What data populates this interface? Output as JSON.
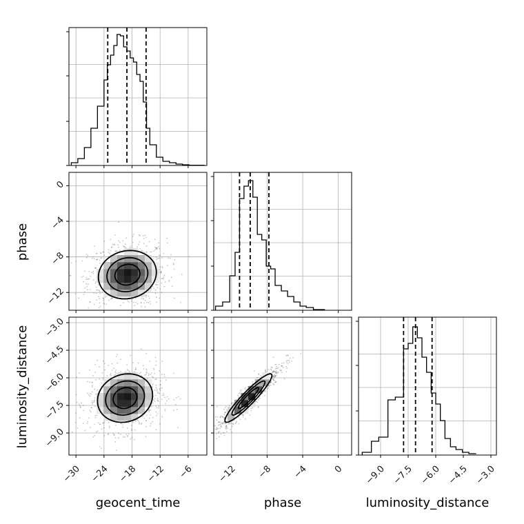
{
  "chart_data": {
    "type": "corner",
    "parameters": [
      "geocent_time",
      "phase",
      "luminosity_distance"
    ],
    "axis_labels": {
      "geocent_time": "geocent_time",
      "phase": "phase",
      "luminosity_distance": "luminosity_distance"
    },
    "axis_ranges": {
      "geocent_time": [
        -31.5,
        -2.0
      ],
      "phase": [
        -14.0,
        1.5
      ],
      "luminosity_distance": [
        -10.2,
        -2.7
      ]
    },
    "ticks": {
      "geocent_time": [
        -30,
        -24,
        -18,
        -12,
        -6
      ],
      "phase": [
        -12,
        -8,
        -4,
        0
      ],
      "luminosity_distance": [
        -9.0,
        -7.5,
        -6.0,
        -4.5,
        -3.0
      ]
    },
    "tick_labels": {
      "geocent_time": [
        "−30",
        "−24",
        "−18",
        "−12",
        "−6"
      ],
      "phase": [
        "−12",
        "−8",
        "−4",
        "0"
      ],
      "luminosity_distance": [
        "−9.0",
        "−7.5",
        "−6.0",
        "−4.5",
        "−3.0"
      ]
    },
    "quantiles": {
      "geocent_time": [
        -23.2,
        -19.1,
        -15.0
      ],
      "phase": [
        -11.1,
        -9.9,
        -7.8
      ],
      "luminosity_distance": [
        -7.75,
        -7.1,
        -6.2
      ]
    },
    "histograms": {
      "geocent_time": {
        "bin_edges": [
          -31.0,
          -29.6,
          -28.2,
          -26.8,
          -25.4,
          -24.0,
          -23.3,
          -22.6,
          -21.9,
          -21.2,
          -20.5,
          -19.8,
          -19.1,
          -18.4,
          -17.7,
          -17.0,
          -16.3,
          -15.6,
          -14.9,
          -14.2,
          -12.8,
          -11.4,
          -10.0,
          -8.6,
          -7.2,
          -5.8,
          -2.5
        ],
        "counts": [
          0.02,
          0.05,
          0.13,
          0.27,
          0.43,
          0.62,
          0.73,
          0.8,
          0.87,
          0.95,
          0.94,
          0.86,
          0.83,
          0.78,
          0.75,
          0.66,
          0.61,
          0.46,
          0.27,
          0.15,
          0.06,
          0.03,
          0.02,
          0.01,
          0.005,
          0.002
        ]
      },
      "phase": {
        "bin_edges": [
          -13.8,
          -13.0,
          -12.2,
          -11.6,
          -11.1,
          -10.6,
          -10.1,
          -9.6,
          -9.1,
          -8.6,
          -8.1,
          -7.6,
          -7.1,
          -6.4,
          -5.7,
          -5.0,
          -4.3,
          -3.6,
          -2.8,
          -1.5
        ],
        "counts": [
          0.03,
          0.06,
          0.25,
          0.42,
          0.81,
          0.9,
          0.94,
          0.82,
          0.55,
          0.51,
          0.32,
          0.3,
          0.18,
          0.14,
          0.1,
          0.06,
          0.03,
          0.02,
          0.005
        ]
      },
      "luminosity_distance": {
        "bin_edges": [
          -10.0,
          -9.5,
          -9.1,
          -8.6,
          -8.2,
          -7.75,
          -7.5,
          -7.25,
          -7.0,
          -6.75,
          -6.5,
          -6.25,
          -6.0,
          -5.75,
          -5.5,
          -5.2,
          -4.9,
          -4.55,
          -4.2,
          -3.8
        ],
        "counts": [
          0.02,
          0.1,
          0.13,
          0.4,
          0.42,
          0.77,
          0.81,
          0.93,
          0.85,
          0.71,
          0.6,
          0.45,
          0.37,
          0.25,
          0.12,
          0.06,
          0.04,
          0.02,
          0.01
        ]
      }
    },
    "joint_2d": [
      {
        "x": "geocent_time",
        "y": "phase",
        "mean": [
          -19.0,
          -10.0
        ],
        "std": [
          4.0,
          1.75
        ],
        "corr": 0.1,
        "density_levels": [
          0.3,
          0.55,
          0.8
        ]
      },
      {
        "x": "geocent_time",
        "y": "luminosity_distance",
        "mean": [
          -19.5,
          -7.1
        ],
        "std": [
          3.8,
          0.85
        ],
        "corr": 0.12,
        "density_levels": [
          0.3,
          0.55,
          0.8
        ]
      },
      {
        "x": "phase",
        "y": "luminosity_distance",
        "mean": [
          -10.1,
          -7.1
        ],
        "std": [
          1.7,
          0.85
        ],
        "corr": 0.93,
        "density_levels": [
          0.3,
          0.55,
          0.8
        ]
      }
    ],
    "grid": true,
    "xlabel_row": [
      "geocent_time",
      "phase",
      "luminosity_distance"
    ],
    "ylabel_col": [
      "phase",
      "luminosity_distance"
    ],
    "colors": {
      "line": "#000000",
      "grid": "#b0b0b0",
      "density_low": "#f0f0f0",
      "density_high": "#202020"
    }
  }
}
